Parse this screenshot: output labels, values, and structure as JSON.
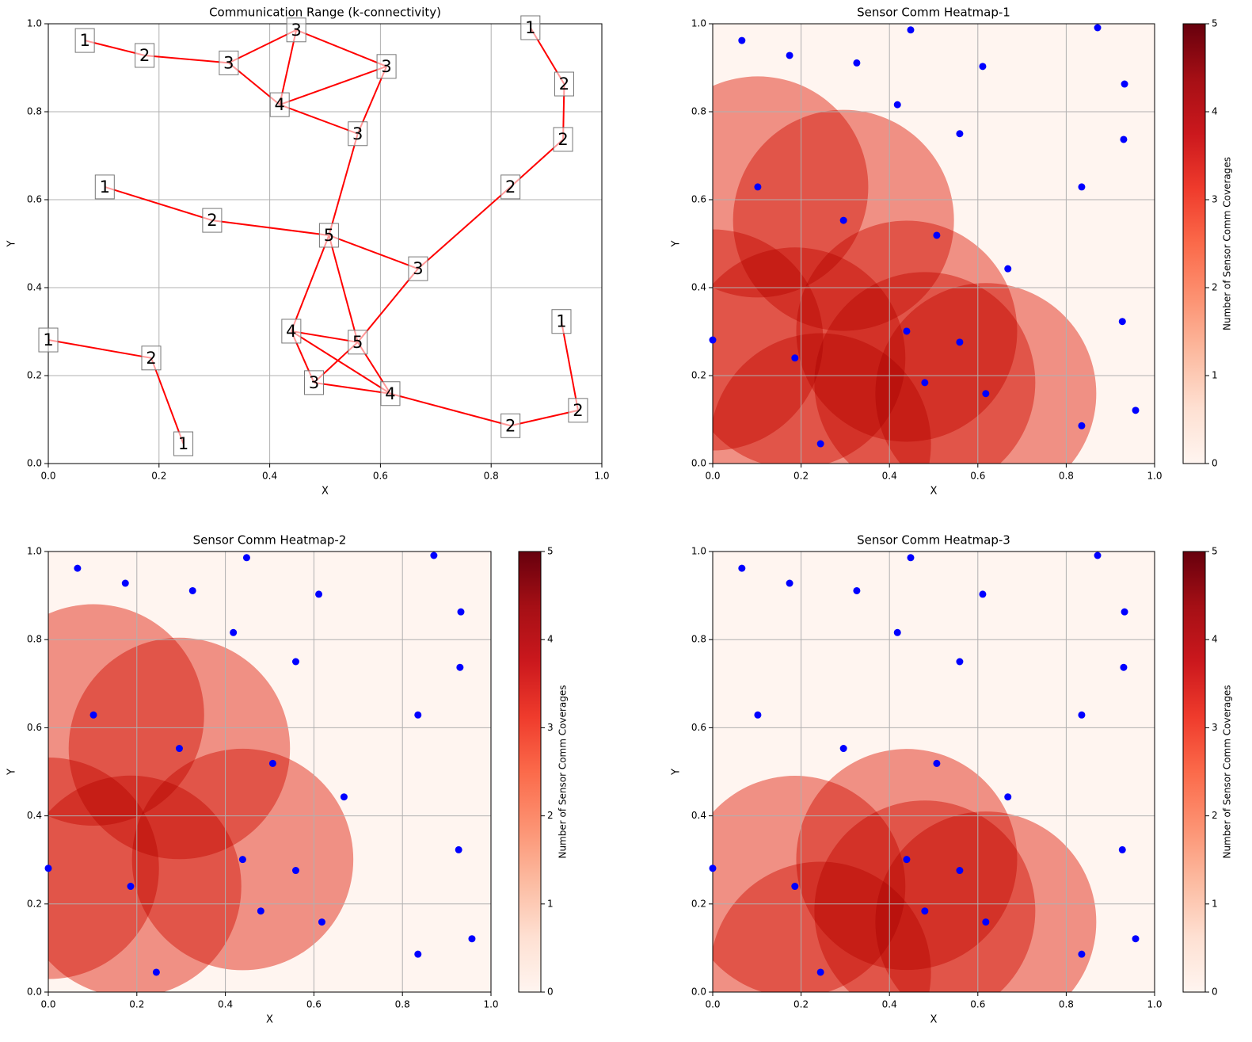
{
  "chart_data": [
    {
      "type": "network",
      "title": "Communication Range (k-connectivity)",
      "xlabel": "X",
      "ylabel": "Y",
      "xlim": [
        0,
        1
      ],
      "ylim": [
        0,
        1
      ],
      "xticks": [
        {
          "value": 0,
          "label": "0.0"
        },
        0.2,
        0.4,
        0.6,
        0.8,
        {
          "value": 1,
          "label": "1.0"
        }
      ],
      "yticks": [
        {
          "value": 0,
          "label": "0.0"
        },
        0.2,
        0.4,
        0.6,
        0.8,
        {
          "value": 1,
          "label": "1.0"
        }
      ],
      "grid": true,
      "edge_color": "#ff0000",
      "x": [
        0.066,
        0.174,
        0.326,
        0.448,
        0.871,
        0.611,
        0.932,
        0.418,
        0.559,
        0.93,
        0.102,
        0.835,
        0.296,
        0.507,
        0.668,
        0.0,
        0.927,
        0.439,
        0.559,
        0.186,
        0.48,
        0.618,
        0.957,
        0.835,
        0.244
      ],
      "y": [
        0.962,
        0.928,
        0.911,
        0.986,
        0.991,
        0.903,
        0.863,
        0.816,
        0.75,
        0.737,
        0.629,
        0.629,
        0.553,
        0.519,
        0.443,
        0.281,
        0.323,
        0.301,
        0.276,
        0.24,
        0.184,
        0.159,
        0.121,
        0.086,
        0.045
      ],
      "values": [
        1,
        2,
        3,
        3,
        1,
        3,
        2,
        4,
        3,
        2,
        1,
        2,
        2,
        5,
        3,
        1,
        1,
        4,
        5,
        2,
        3,
        4,
        2,
        2,
        1
      ],
      "edges": [
        [
          0,
          1
        ],
        [
          1,
          2
        ],
        [
          2,
          3
        ],
        [
          2,
          7
        ],
        [
          3,
          7
        ],
        [
          3,
          5
        ],
        [
          7,
          5
        ],
        [
          7,
          8
        ],
        [
          5,
          8
        ],
        [
          8,
          13
        ],
        [
          10,
          12
        ],
        [
          12,
          13
        ],
        [
          13,
          14
        ],
        [
          14,
          11
        ],
        [
          11,
          9
        ],
        [
          9,
          6
        ],
        [
          6,
          4
        ],
        [
          14,
          18
        ],
        [
          18,
          20
        ],
        [
          13,
          18
        ],
        [
          13,
          17
        ],
        [
          17,
          18
        ],
        [
          17,
          20
        ],
        [
          17,
          21
        ],
        [
          18,
          21
        ],
        [
          20,
          21
        ],
        [
          21,
          23
        ],
        [
          23,
          22
        ],
        [
          22,
          16
        ],
        [
          15,
          19
        ],
        [
          19,
          24
        ]
      ]
    },
    {
      "type": "heatmap",
      "title": "Sensor Comm Heatmap-1",
      "xlabel": "X",
      "ylabel": "Y",
      "xlim": [
        0,
        1
      ],
      "ylim": [
        0,
        1
      ],
      "xticks": [
        {
          "value": 0,
          "label": "0.0"
        },
        0.2,
        0.4,
        0.6,
        0.8,
        {
          "value": 1,
          "label": "1.0"
        }
      ],
      "yticks": [
        {
          "value": 0,
          "label": "0.0"
        },
        0.2,
        0.4,
        0.6,
        0.8,
        {
          "value": 1,
          "label": "1.0"
        }
      ],
      "grid": true,
      "point_color": "#0000ff",
      "x": [
        0.066,
        0.174,
        0.326,
        0.448,
        0.871,
        0.611,
        0.932,
        0.418,
        0.559,
        0.93,
        0.102,
        0.835,
        0.296,
        0.507,
        0.668,
        0.0,
        0.927,
        0.439,
        0.559,
        0.186,
        0.48,
        0.618,
        0.957,
        0.835,
        0.244
      ],
      "y": [
        0.962,
        0.928,
        0.911,
        0.986,
        0.991,
        0.903,
        0.863,
        0.816,
        0.75,
        0.737,
        0.629,
        0.629,
        0.553,
        0.519,
        0.443,
        0.281,
        0.323,
        0.301,
        0.276,
        0.24,
        0.184,
        0.159,
        0.121,
        0.086,
        0.045
      ],
      "radius": 0.25,
      "circles": {
        "x": [
          0.102,
          0.296,
          0.0,
          0.186,
          0.439,
          0.48,
          0.618,
          0.244
        ],
        "y": [
          0.629,
          0.553,
          0.281,
          0.24,
          0.301,
          0.184,
          0.159,
          0.045
        ]
      },
      "colorbar": {
        "label": "Number of Sensor Comm Coverages",
        "lim": [
          0,
          5
        ],
        "ticks": [
          0,
          1,
          2,
          3,
          4,
          5
        ]
      }
    },
    {
      "type": "heatmap",
      "title": "Sensor Comm Heatmap-2",
      "xlabel": "X",
      "ylabel": "Y",
      "xlim": [
        0,
        1
      ],
      "ylim": [
        0,
        1
      ],
      "xticks": [
        {
          "value": 0,
          "label": "0.0"
        },
        0.2,
        0.4,
        0.6,
        0.8,
        {
          "value": 1,
          "label": "1.0"
        }
      ],
      "yticks": [
        {
          "value": 0,
          "label": "0.0"
        },
        0.2,
        0.4,
        0.6,
        0.8,
        {
          "value": 1,
          "label": "1.0"
        }
      ],
      "grid": true,
      "point_color": "#0000ff",
      "x": [
        0.066,
        0.174,
        0.326,
        0.448,
        0.871,
        0.611,
        0.932,
        0.418,
        0.559,
        0.93,
        0.102,
        0.835,
        0.296,
        0.507,
        0.668,
        0.0,
        0.927,
        0.439,
        0.559,
        0.186,
        0.48,
        0.618,
        0.957,
        0.835,
        0.244
      ],
      "y": [
        0.962,
        0.928,
        0.911,
        0.986,
        0.991,
        0.903,
        0.863,
        0.816,
        0.75,
        0.737,
        0.629,
        0.629,
        0.553,
        0.519,
        0.443,
        0.281,
        0.323,
        0.301,
        0.276,
        0.24,
        0.184,
        0.159,
        0.121,
        0.086,
        0.045
      ],
      "radius": 0.25,
      "circles": {
        "x": [
          0.102,
          0.296,
          0.0,
          0.186,
          0.439
        ],
        "y": [
          0.629,
          0.553,
          0.281,
          0.24,
          0.301
        ]
      },
      "colorbar": {
        "label": "Number of Sensor Comm Coverages",
        "lim": [
          0,
          5
        ],
        "ticks": [
          0,
          1,
          2,
          3,
          4,
          5
        ]
      }
    },
    {
      "type": "heatmap",
      "title": "Sensor Comm Heatmap-3",
      "xlabel": "X",
      "ylabel": "Y",
      "xlim": [
        0,
        1
      ],
      "ylim": [
        0,
        1
      ],
      "xticks": [
        {
          "value": 0,
          "label": "0.0"
        },
        0.2,
        0.4,
        0.6,
        0.8,
        {
          "value": 1,
          "label": "1.0"
        }
      ],
      "yticks": [
        {
          "value": 0,
          "label": "0.0"
        },
        0.2,
        0.4,
        0.6,
        0.8,
        {
          "value": 1,
          "label": "1.0"
        }
      ],
      "grid": true,
      "point_color": "#0000ff",
      "x": [
        0.066,
        0.174,
        0.326,
        0.448,
        0.871,
        0.611,
        0.932,
        0.418,
        0.559,
        0.93,
        0.102,
        0.835,
        0.296,
        0.507,
        0.668,
        0.0,
        0.927,
        0.439,
        0.559,
        0.186,
        0.48,
        0.618,
        0.957,
        0.835,
        0.244
      ],
      "y": [
        0.962,
        0.928,
        0.911,
        0.986,
        0.991,
        0.903,
        0.863,
        0.816,
        0.75,
        0.737,
        0.629,
        0.629,
        0.553,
        0.519,
        0.443,
        0.281,
        0.323,
        0.301,
        0.276,
        0.24,
        0.184,
        0.159,
        0.121,
        0.086,
        0.045
      ],
      "radius": 0.25,
      "circles": {
        "x": [
          0.186,
          0.439,
          0.48,
          0.618,
          0.244
        ],
        "y": [
          0.24,
          0.301,
          0.184,
          0.159,
          0.045
        ]
      },
      "colorbar": {
        "label": "Number of Sensor Comm Coverages",
        "lim": [
          0,
          5
        ],
        "ticks": [
          0,
          1,
          2,
          3,
          4,
          5
        ]
      }
    }
  ]
}
